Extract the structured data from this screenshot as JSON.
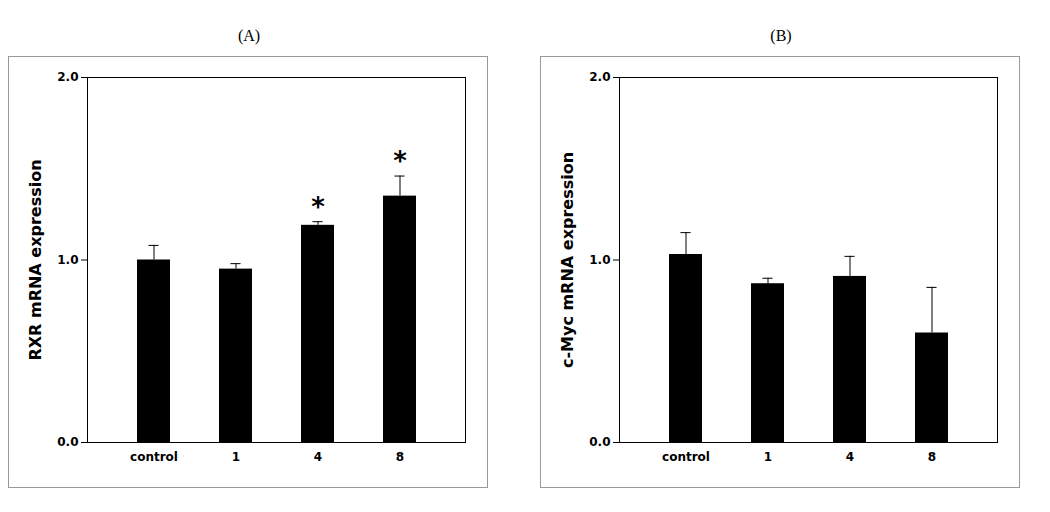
{
  "chart_data": [
    {
      "type": "bar",
      "title": "(A)",
      "ylabel": "RXR mRNA expression",
      "categories": [
        "control",
        "1",
        "4",
        "8"
      ],
      "values": [
        1.0,
        0.95,
        1.19,
        1.35
      ],
      "errors": [
        0.08,
        0.03,
        0.02,
        0.11
      ],
      "annotations": [
        {
          "x": "4",
          "text": "*"
        },
        {
          "x": "8",
          "text": "*"
        }
      ],
      "color": "#000000",
      "ylim": [
        0,
        2
      ],
      "yticks": [
        {
          "value": 0,
          "label": "0.0"
        },
        {
          "value": 1,
          "label": "1.0"
        },
        {
          "value": 2,
          "label": "2.0"
        }
      ],
      "grid": false
    },
    {
      "type": "bar",
      "title": "(B)",
      "ylabel": "c-Myc mRNA expression",
      "categories": [
        "control",
        "1",
        "4",
        "8"
      ],
      "values": [
        1.03,
        0.87,
        0.91,
        0.6
      ],
      "errors": [
        0.12,
        0.03,
        0.11,
        0.25
      ],
      "color": "#000000",
      "ylim": [
        0,
        2
      ],
      "yticks": [
        {
          "value": 0,
          "label": "0.0"
        },
        {
          "value": 1,
          "label": "1.0"
        },
        {
          "value": 2,
          "label": "2.0"
        }
      ],
      "grid": false
    }
  ]
}
